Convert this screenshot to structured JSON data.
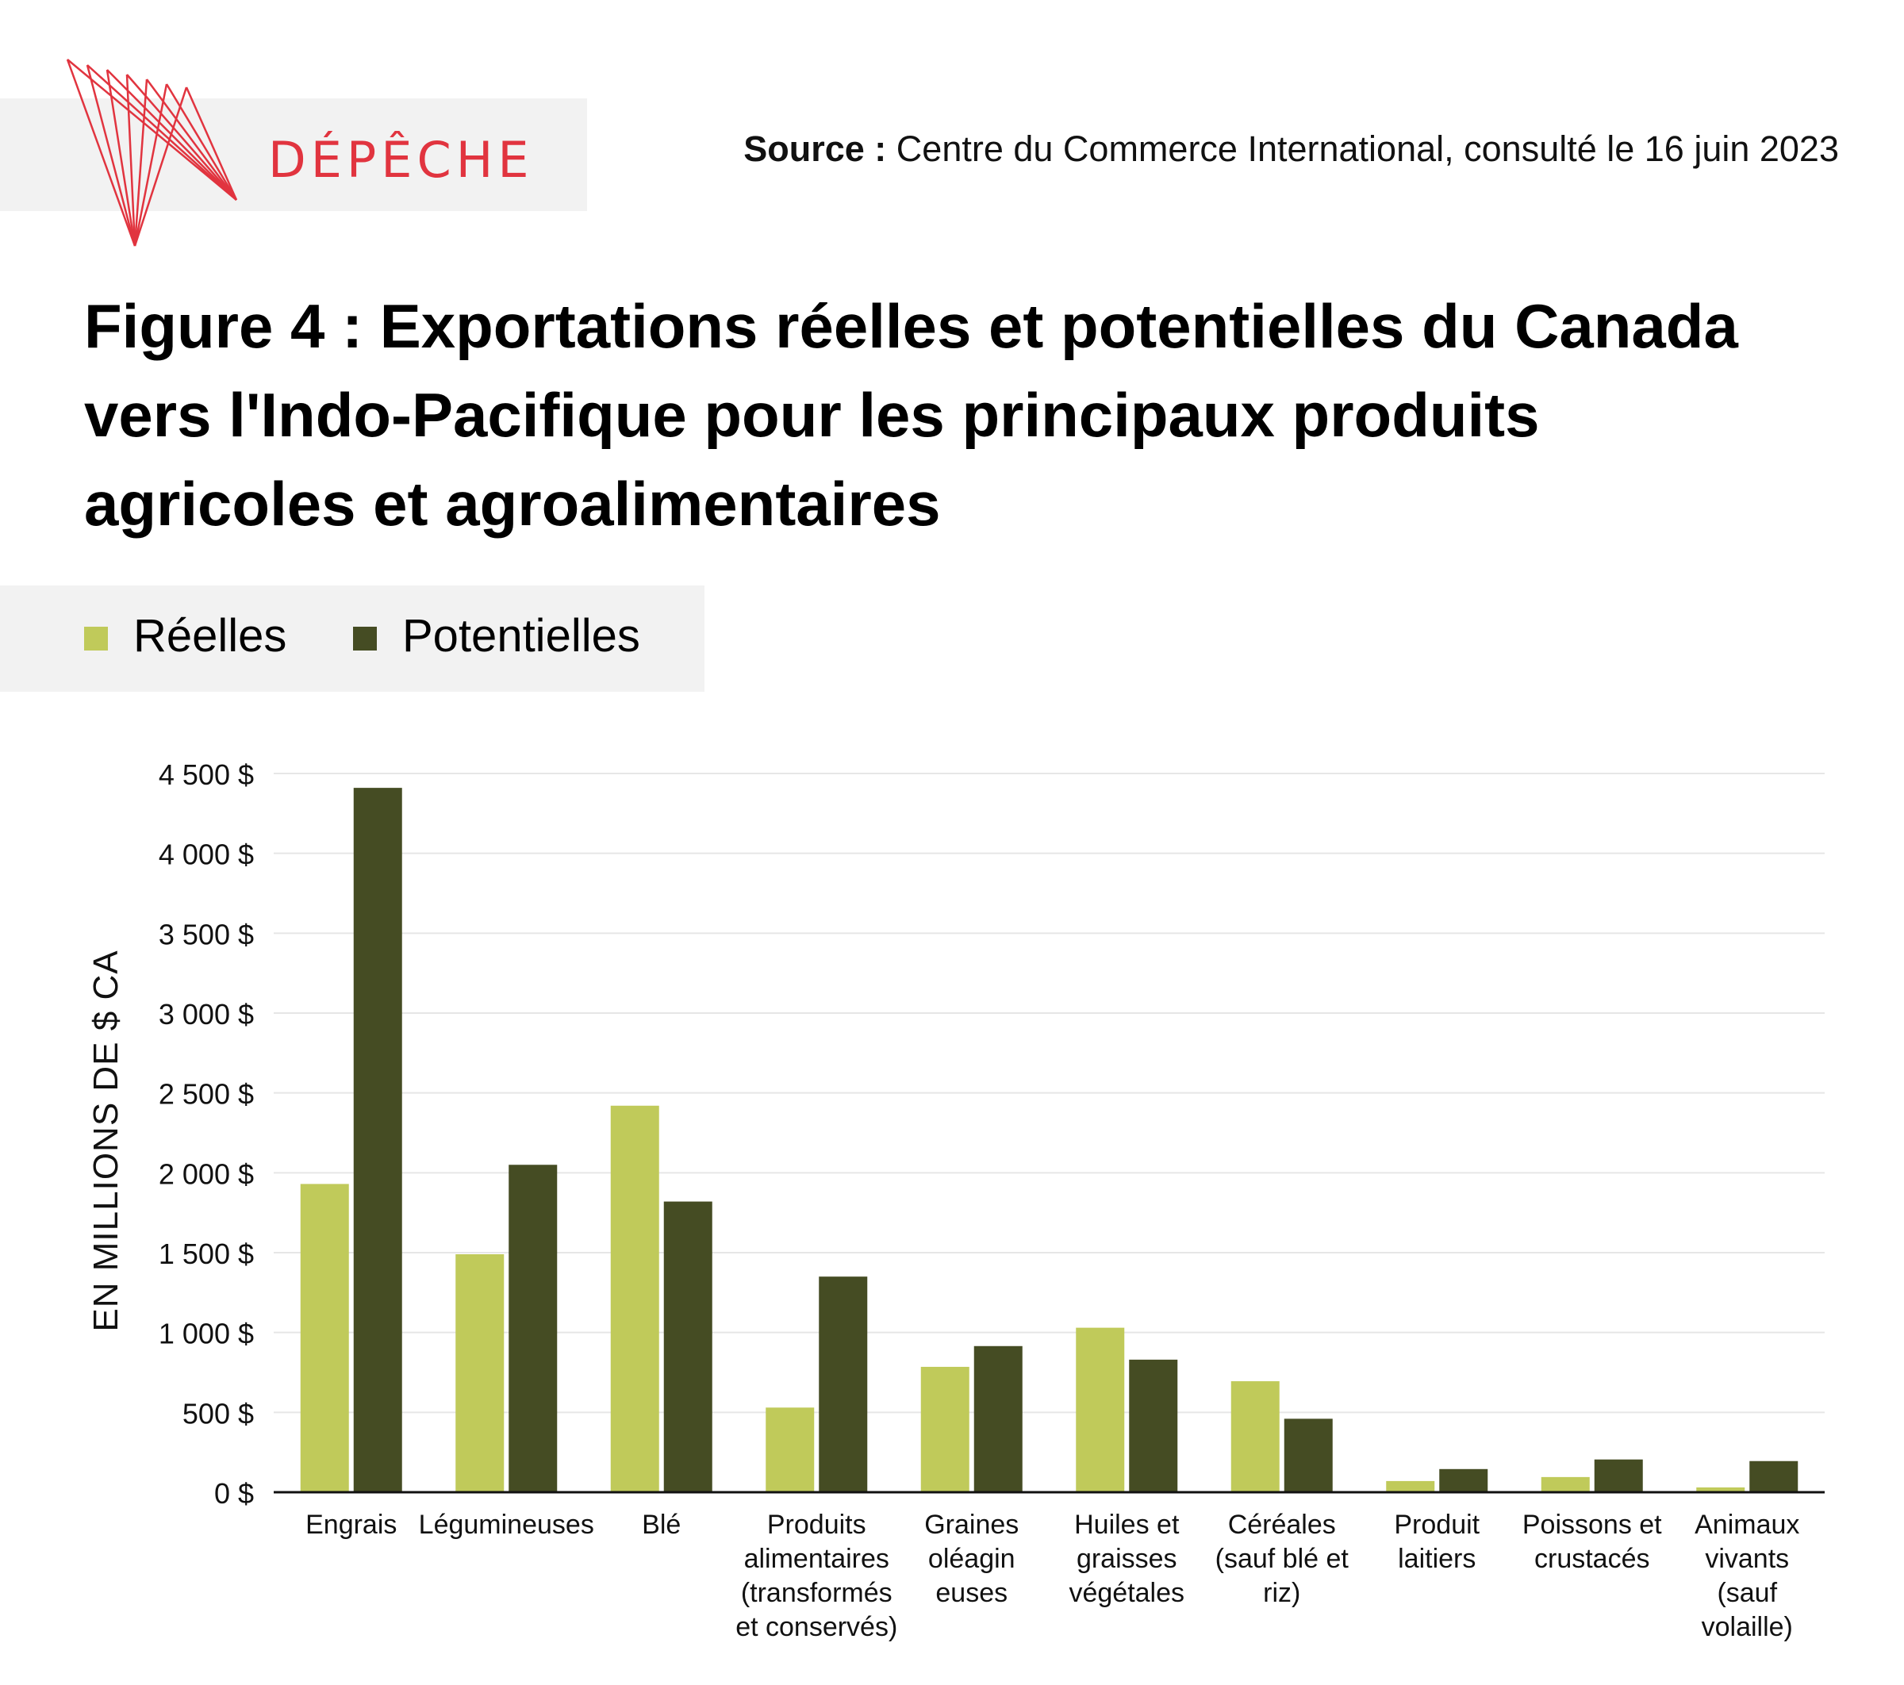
{
  "brand": {
    "name": "DÉPÊCHE"
  },
  "source": {
    "label": "Source :",
    "text": "Centre du Commerce International, consulté le 16 juin 2023"
  },
  "title_lines": [
    "Figure 4 : Exportations réelles et potentielles du Canada",
    "vers l'Indo-Pacifique pour les principaux produits",
    "agricoles et agroalimentaires"
  ],
  "legend": [
    {
      "label": "Réelles",
      "color": "#c0ca5a"
    },
    {
      "label": "Potentielles",
      "color": "#454c23"
    }
  ],
  "chart_data": {
    "type": "bar",
    "ylabel": "EN MILLIONS DE $ CA",
    "ylim": [
      0,
      4500
    ],
    "yticks": [
      0,
      500,
      1000,
      1500,
      2000,
      2500,
      3000,
      3500,
      4000,
      4500
    ],
    "ytick_labels": [
      "0 $",
      "500 $",
      "1 000 $",
      "1 500 $",
      "2 000 $",
      "2 500 $",
      "3 000 $",
      "3 500 $",
      "4 000 $",
      "4 500  $"
    ],
    "grid": true,
    "categories": [
      [
        "Engrais"
      ],
      [
        "Légumineuses"
      ],
      [
        "Blé"
      ],
      [
        "Produits",
        "alimentaires",
        "(transformés",
        "et conservés)"
      ],
      [
        "Graines",
        "oléagin",
        "euses"
      ],
      [
        "Huiles et",
        "graisses",
        "végétales"
      ],
      [
        "Céréales",
        "(sauf blé et",
        "riz)"
      ],
      [
        "Produit",
        "laitiers"
      ],
      [
        "Poissons et",
        "crustacés"
      ],
      [
        "Animaux",
        "vivants",
        "(sauf",
        "volaille)"
      ]
    ],
    "series": [
      {
        "name": "Réelles",
        "color": "#c0ca5a",
        "values": [
          1930,
          1490,
          2420,
          530,
          785,
          1030,
          695,
          70,
          95,
          30
        ]
      },
      {
        "name": "Potentielles",
        "color": "#454c23",
        "values": [
          4410,
          2050,
          1820,
          1350,
          915,
          830,
          460,
          145,
          205,
          195
        ]
      }
    ]
  }
}
